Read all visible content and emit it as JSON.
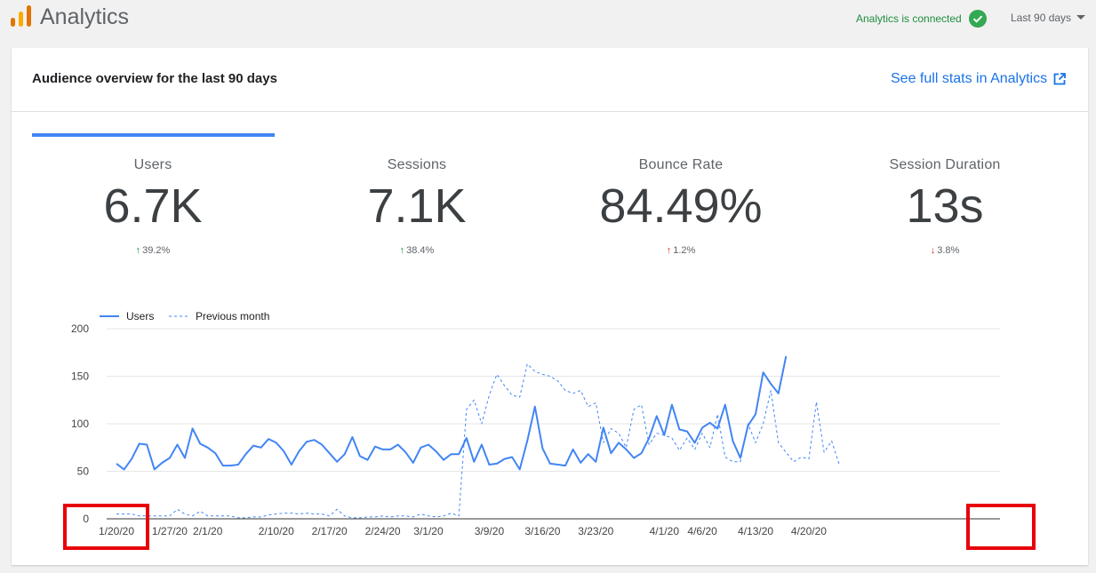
{
  "header": {
    "app_title": "Analytics",
    "connection_status": "Analytics is connected",
    "date_range": "Last 90 days"
  },
  "card": {
    "title": "Audience overview for the last 90 days",
    "full_stats_link": "See full stats in Analytics"
  },
  "metrics": [
    {
      "label": "Users",
      "value": "6.7K",
      "change": "39.2%",
      "direction": "up"
    },
    {
      "label": "Sessions",
      "value": "7.1K",
      "change": "38.4%",
      "direction": "up"
    },
    {
      "label": "Bounce Rate",
      "value": "84.49%",
      "change": "1.2%",
      "direction": "up-bad"
    },
    {
      "label": "Session Duration",
      "value": "13s",
      "change": "3.8%",
      "direction": "down-bad"
    }
  ],
  "colors": {
    "accent": "#4285f4",
    "link": "#1a73e8",
    "positive": "#1e8e3e",
    "negative": "#d93025",
    "highlight": "#e8000b"
  },
  "chart_data": {
    "type": "line",
    "ylim": [
      0,
      200
    ],
    "yticks": [
      0,
      50,
      100,
      150,
      200
    ],
    "x_tick_labels": [
      {
        "label": "1/20/20",
        "index": 0
      },
      {
        "label": "1/27/20",
        "index": 7
      },
      {
        "label": "2/1/20",
        "index": 12
      },
      {
        "label": "2/10/20",
        "index": 21
      },
      {
        "label": "2/17/20",
        "index": 28
      },
      {
        "label": "2/24/20",
        "index": 35
      },
      {
        "label": "3/1/20",
        "index": 41
      },
      {
        "label": "3/9/20",
        "index": 49
      },
      {
        "label": "3/16/20",
        "index": 56
      },
      {
        "label": "3/23/20",
        "index": 63
      },
      {
        "label": "4/1/20",
        "index": 72
      },
      {
        "label": "4/6/20",
        "index": 77
      },
      {
        "label": "4/13/20",
        "index": 84
      },
      {
        "label": "4/20/20",
        "index": 91
      }
    ],
    "legend_position": "top-left",
    "series": [
      {
        "name": "Users",
        "style": "solid",
        "color": "#4285f4",
        "values": [
          58,
          52,
          63,
          79,
          78,
          52,
          59,
          64,
          78,
          64,
          95,
          79,
          75,
          69,
          56,
          56,
          57,
          68,
          77,
          75,
          84,
          80,
          71,
          57,
          71,
          81,
          83,
          78,
          69,
          60,
          68,
          86,
          66,
          62,
          76,
          73,
          73,
          78,
          70,
          59,
          75,
          78,
          71,
          62,
          68,
          68,
          85,
          60,
          78,
          57,
          58,
          63,
          65,
          52,
          82,
          118,
          74,
          58,
          57,
          56,
          73,
          59,
          68,
          60,
          96,
          69,
          80,
          73,
          64,
          69,
          85,
          108,
          88,
          120,
          94,
          92,
          80,
          96,
          101,
          95,
          120,
          82,
          64,
          98,
          110,
          154,
          142,
          132,
          171
        ]
      },
      {
        "name": "Previous month",
        "style": "dashed",
        "color": "#4285f4",
        "values": [
          5,
          5,
          5,
          3,
          3,
          3,
          3,
          3,
          10,
          5,
          3,
          8,
          3,
          3,
          3,
          3,
          1,
          1,
          2,
          2,
          4,
          5,
          6,
          6,
          5,
          6,
          5,
          5,
          3,
          10,
          3,
          1,
          1,
          2,
          2,
          3,
          2,
          3,
          3,
          2,
          5,
          3,
          2,
          3,
          6,
          3,
          115,
          125,
          100,
          130,
          152,
          140,
          130,
          128,
          163,
          155,
          152,
          150,
          145,
          135,
          132,
          135,
          118,
          122,
          80,
          95,
          90,
          75,
          115,
          120,
          78,
          90,
          88,
          85,
          72,
          85,
          73,
          90,
          75,
          110,
          65,
          60,
          60,
          100,
          80,
          100,
          135,
          80,
          70,
          60,
          65,
          63,
          123,
          70,
          82,
          57
        ]
      }
    ]
  }
}
